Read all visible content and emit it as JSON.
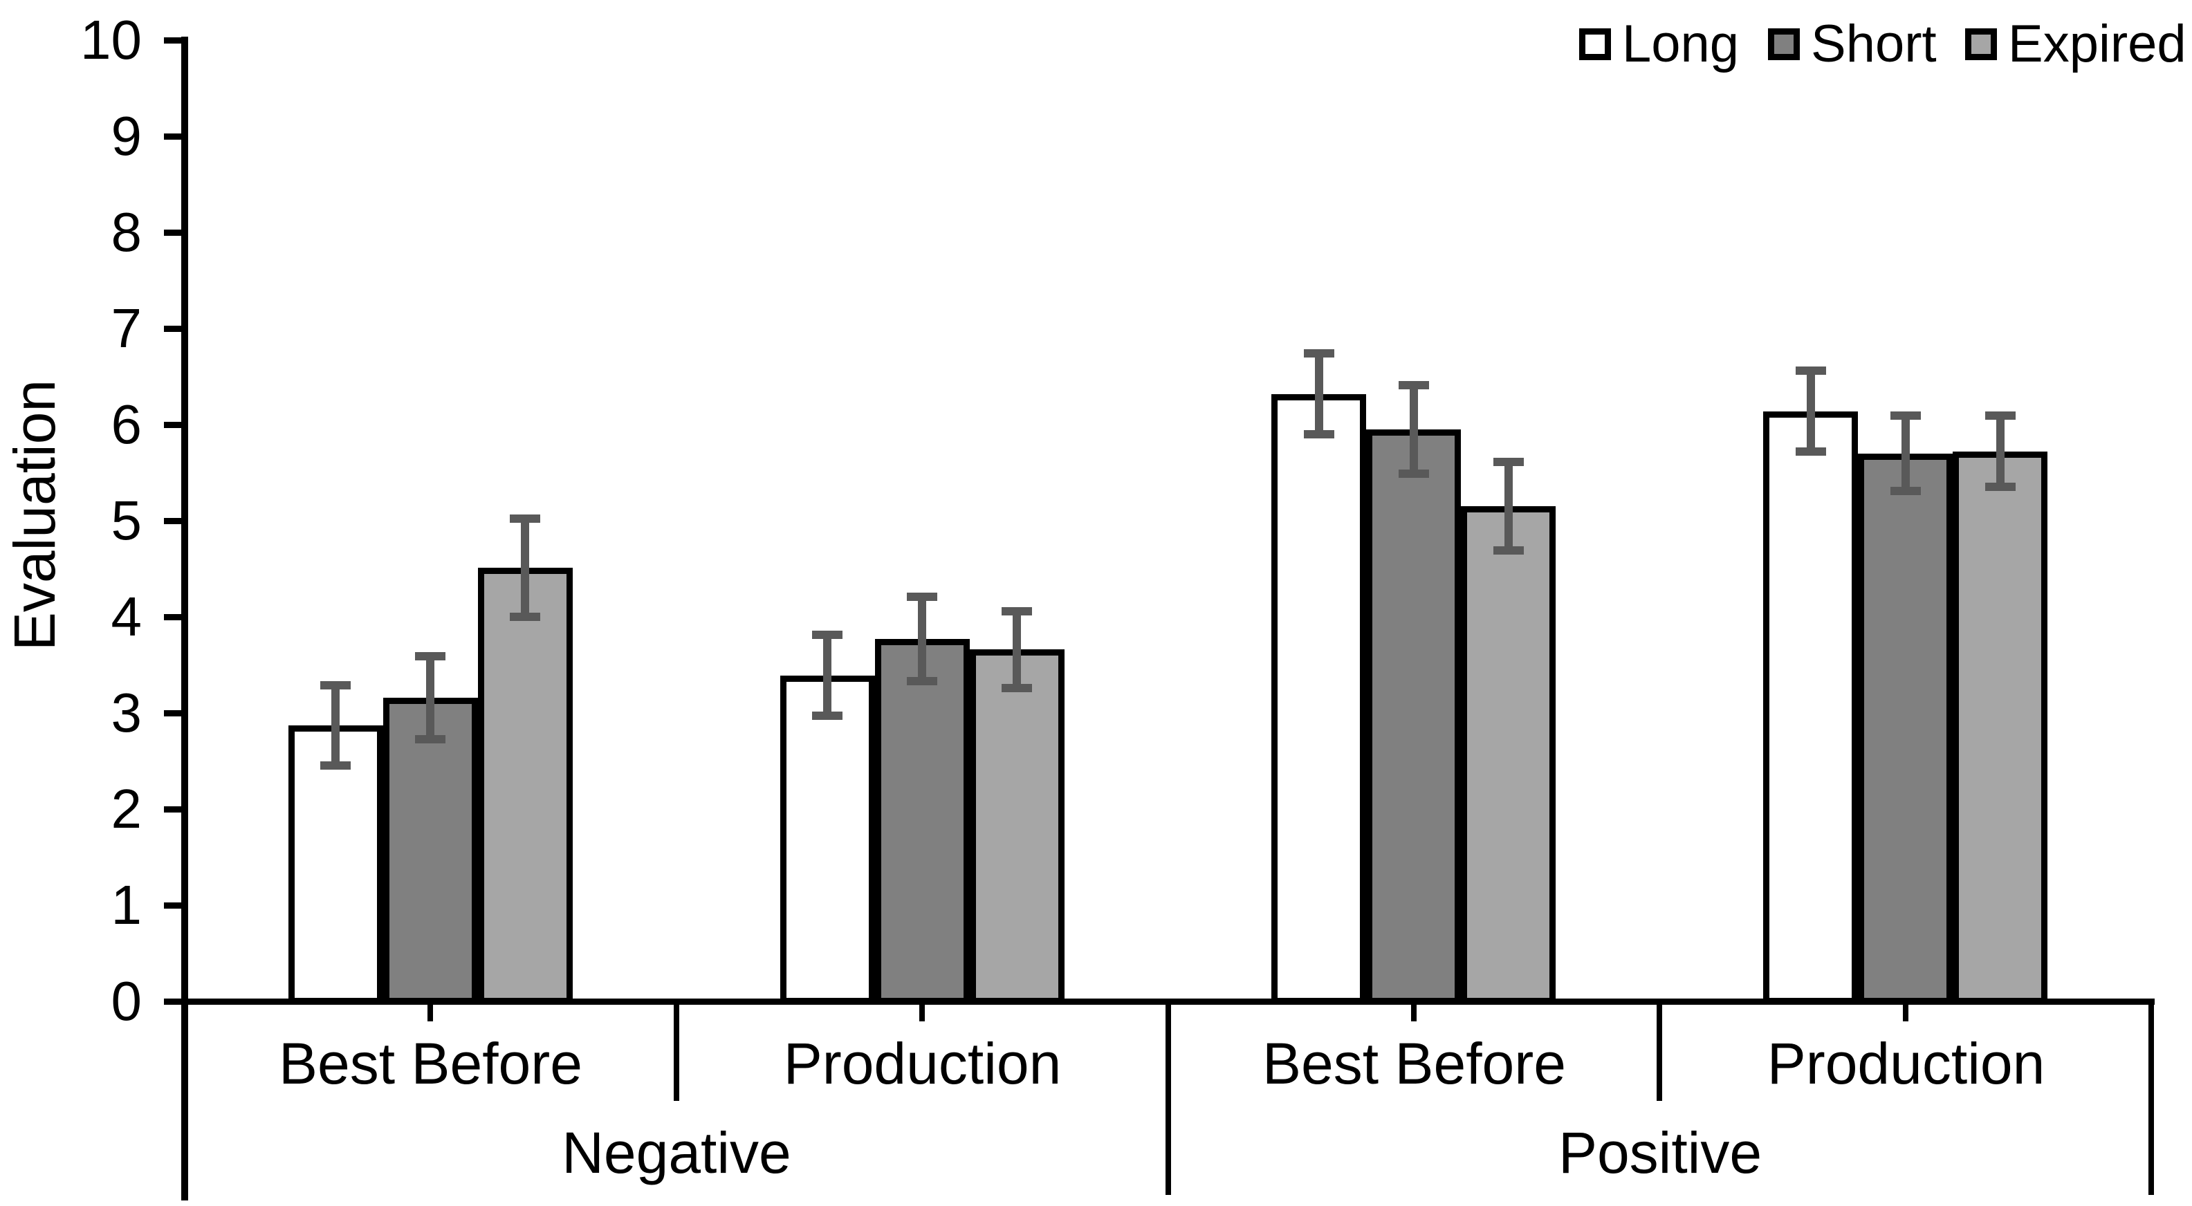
{
  "chart_data": {
    "type": "bar",
    "title": "",
    "ylabel": "Evaluation",
    "ylim": [
      0,
      10
    ],
    "yticks": [
      0,
      1,
      2,
      3,
      4,
      5,
      6,
      7,
      8,
      9,
      10
    ],
    "grid": false,
    "legend_position": "top-right",
    "categories_level1": [
      "Best Before",
      "Production",
      "Best Before",
      "Production"
    ],
    "categories_level2": [
      "Negative",
      "Positive"
    ],
    "series": [
      {
        "name": "Long",
        "fill": "#ffffff",
        "values": [
          2.87,
          3.39,
          6.32,
          6.14
        ],
        "errors": [
          0.42,
          0.42,
          0.42,
          0.42
        ]
      },
      {
        "name": "Short",
        "fill": "#808080",
        "values": [
          3.16,
          3.77,
          5.95,
          5.7
        ],
        "errors": [
          0.43,
          0.44,
          0.46,
          0.39
        ]
      },
      {
        "name": "Expired",
        "fill": "#a6a6a6",
        "values": [
          4.51,
          3.66,
          5.15,
          5.72
        ],
        "errors": [
          0.51,
          0.4,
          0.46,
          0.37
        ]
      }
    ],
    "colors": {
      "axis": "#000000",
      "error_bar": "#595959",
      "long_fill": "#ffffff",
      "short_fill": "#808080",
      "expired_fill": "#a6a6a6"
    }
  }
}
